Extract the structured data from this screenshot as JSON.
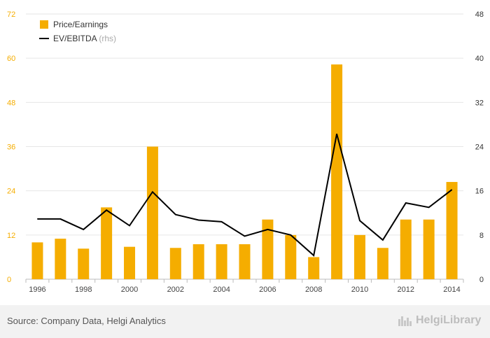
{
  "chart_data": {
    "type": "bar",
    "categories": [
      "1996",
      "1997",
      "1998",
      "1999",
      "2000",
      "2001",
      "2002",
      "2003",
      "2004",
      "2005",
      "2006",
      "2007",
      "2008",
      "2009",
      "2010",
      "2011",
      "2012",
      "2013",
      "2014"
    ],
    "series": [
      {
        "name": "Price/Earnings",
        "type": "bar",
        "axis": "left",
        "color": "#f5ad00",
        "values": [
          10.0,
          11.0,
          8.3,
          19.5,
          8.8,
          36.0,
          8.5,
          9.5,
          9.5,
          9.5,
          16.2,
          12.0,
          6.0,
          58.3,
          12.0,
          8.5,
          16.2,
          16.2,
          26.4
        ]
      },
      {
        "name": "EV/EBITDA",
        "name_suffix": "(rhs)",
        "type": "line",
        "axis": "right",
        "color": "#000000",
        "values": [
          10.9,
          10.9,
          9.0,
          12.5,
          9.7,
          15.8,
          11.7,
          10.7,
          10.4,
          7.8,
          9.0,
          8.0,
          4.3,
          26.3,
          10.6,
          7.1,
          13.8,
          13.0,
          16.2
        ]
      }
    ],
    "ylim_left": [
      0,
      72
    ],
    "ylim_right": [
      0,
      48
    ],
    "yticks_left": [
      "0",
      "12",
      "24",
      "36",
      "48",
      "60",
      "72"
    ],
    "yticks_right": [
      "0",
      "8",
      "16",
      "24",
      "32",
      "40",
      "48"
    ],
    "xtick_labels": [
      "1996",
      "",
      "1998",
      "",
      "2000",
      "",
      "2002",
      "",
      "2004",
      "",
      "2006",
      "",
      "2008",
      "",
      "2010",
      "",
      "2012",
      "",
      "2014"
    ],
    "legend_position": "top-left",
    "grid": true,
    "colors": {
      "bar": "#f5ad00",
      "line": "#000000",
      "left_axis_text": "#f5ad00",
      "right_axis_text": "#333333",
      "grid": "#e6e6e6"
    }
  },
  "footer": {
    "source": "Source: Company Data, Helgi Analytics",
    "logo_text": "HelgiLibrary",
    "logo_icon": "city-skyline-icon"
  }
}
